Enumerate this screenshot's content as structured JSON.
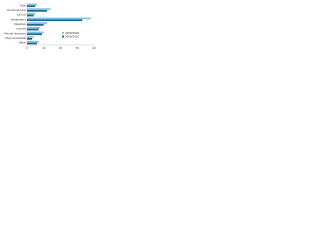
{
  "chart_data": {
    "type": "hbar",
    "categories": [
      "Total",
      "Cardiovascular",
      "Cancer",
      "Respiratory",
      "Digestive",
      "Injuries",
      "Mental disorders",
      "Musculoskeletal",
      "Other"
    ],
    "series": [
      {
        "name": "2008/2009",
        "color": "#7fc4e0",
        "values": [
          6,
          14,
          5,
          38,
          12,
          8,
          10,
          4,
          7
        ]
      },
      {
        "name": "2009/2010",
        "color": "#1f6a96",
        "values": [
          5,
          12,
          4,
          33,
          10,
          7,
          9,
          3,
          6
        ]
      }
    ],
    "xlim": [
      0,
      40
    ],
    "xticks": [
      0,
      10,
      20,
      30,
      40
    ],
    "grid": false,
    "legend": "lower-right"
  }
}
